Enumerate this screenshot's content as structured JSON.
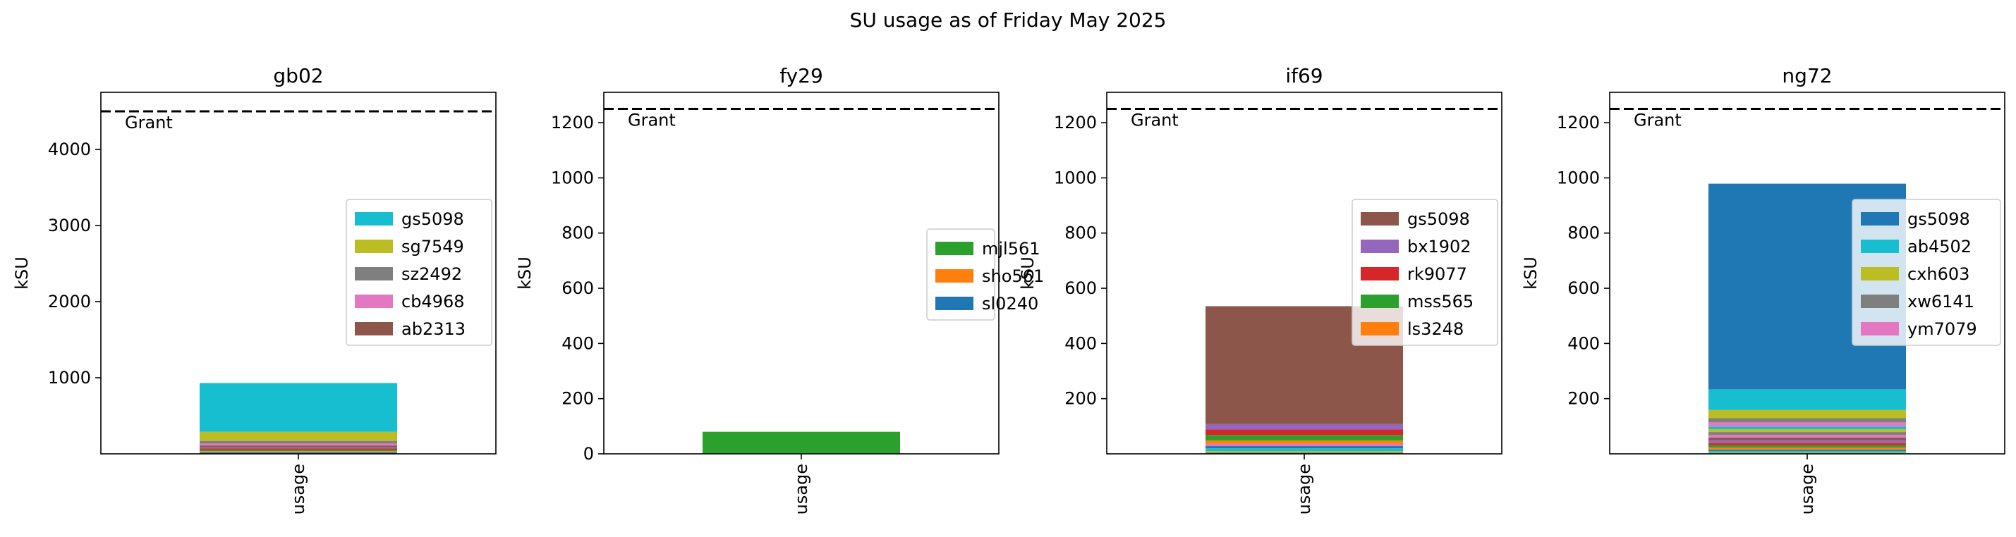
{
  "suptitle": "SU usage as of Friday May 2025",
  "colors": {
    "tab_blue": "#1f77b4",
    "tab_orange": "#ff7f0e",
    "tab_green": "#2ca02c",
    "tab_red": "#d62728",
    "tab_purple": "#9467bd",
    "tab_brown": "#8c564b",
    "tab_pink": "#e377c2",
    "tab_gray": "#7f7f7f",
    "tab_olive": "#bcbd22",
    "tab_cyan": "#17becf",
    "grant_line": "#000000"
  },
  "chart_data": [
    {
      "type": "bar",
      "stacked": true,
      "title": "gb02",
      "xlabel": "",
      "ylabel": "kSU",
      "categories": [
        "usage"
      ],
      "ylim": [
        0,
        4750
      ],
      "yticks": [
        1000,
        2000,
        3000,
        4000
      ],
      "grant": 4500,
      "grant_label": "Grant",
      "legend": [
        "gs5098",
        "sg7549",
        "sz2492",
        "cb4968",
        "ab2313"
      ],
      "legend_position": "center-right",
      "series": [
        {
          "values": [
            20
          ],
          "color": "#1f77b4"
        },
        {
          "values": [
            15
          ],
          "color": "#ff7f0e"
        },
        {
          "values": [
            20
          ],
          "color": "#2ca02c"
        },
        {
          "values": [
            15
          ],
          "color": "#d62728"
        },
        {
          "values": [
            15
          ],
          "color": "#9467bd"
        },
        {
          "name": "ab2313",
          "values": [
            25
          ],
          "color": "#8c564b"
        },
        {
          "name": "cb4968",
          "values": [
            25
          ],
          "color": "#e377c2"
        },
        {
          "name": "sz2492",
          "values": [
            35
          ],
          "color": "#7f7f7f"
        },
        {
          "name": "sg7549",
          "values": [
            120
          ],
          "color": "#bcbd22"
        },
        {
          "name": "gs5098",
          "values": [
            640
          ],
          "color": "#17becf"
        }
      ]
    },
    {
      "type": "bar",
      "stacked": true,
      "title": "fy29",
      "xlabel": "",
      "ylabel": "kSU",
      "categories": [
        "usage"
      ],
      "ylim": [
        0,
        1310
      ],
      "yticks": [
        0,
        200,
        400,
        600,
        800,
        1000,
        1200
      ],
      "grant": 1250,
      "grant_label": "Grant",
      "legend": [
        "mjl561",
        "sho561",
        "sl0240"
      ],
      "legend_position": "center-right",
      "series": [
        {
          "name": "sl0240",
          "values": [
            0
          ],
          "color": "#1f77b4"
        },
        {
          "name": "sho561",
          "values": [
            0
          ],
          "color": "#ff7f0e"
        },
        {
          "name": "mjl561",
          "values": [
            80
          ],
          "color": "#2ca02c"
        }
      ]
    },
    {
      "type": "bar",
      "stacked": true,
      "title": "if69",
      "xlabel": "",
      "ylabel": "kSU",
      "categories": [
        "usage"
      ],
      "ylim": [
        0,
        1310
      ],
      "yticks": [
        200,
        400,
        600,
        800,
        1000,
        1200
      ],
      "grant": 1250,
      "grant_label": "Grant",
      "legend": [
        "gs5098",
        "bx1902",
        "rk9077",
        "mss565",
        "ls3248"
      ],
      "legend_position": "upper-right",
      "series": [
        {
          "values": [
            5
          ],
          "color": "#7f7f7f"
        },
        {
          "values": [
            5
          ],
          "color": "#bcbd22"
        },
        {
          "values": [
            10
          ],
          "color": "#17becf"
        },
        {
          "values": [
            8
          ],
          "color": "#1f77b4"
        },
        {
          "values": [
            8
          ],
          "color": "#e377c2"
        },
        {
          "name": "ls3248",
          "values": [
            12
          ],
          "color": "#ff7f0e"
        },
        {
          "name": "mss565",
          "values": [
            20
          ],
          "color": "#2ca02c"
        },
        {
          "name": "rk9077",
          "values": [
            20
          ],
          "color": "#d62728"
        },
        {
          "name": "bx1902",
          "values": [
            20
          ],
          "color": "#9467bd"
        },
        {
          "name": "gs5098",
          "values": [
            427
          ],
          "color": "#8c564b"
        }
      ]
    },
    {
      "type": "bar",
      "stacked": true,
      "title": "ng72",
      "xlabel": "",
      "ylabel": "kSU",
      "categories": [
        "usage"
      ],
      "ylim": [
        0,
        1310
      ],
      "yticks": [
        200,
        400,
        600,
        800,
        1000,
        1200
      ],
      "grant": 1250,
      "grant_label": "Grant",
      "legend": [
        "gs5098",
        "ab4502",
        "cxh603",
        "xw6141",
        "ym7079"
      ],
      "legend_position": "upper-right",
      "series": [
        {
          "values": [
            5
          ],
          "color": "#bcbd22"
        },
        {
          "values": [
            5
          ],
          "color": "#17becf"
        },
        {
          "values": [
            5
          ],
          "color": "#1f77b4"
        },
        {
          "values": [
            8
          ],
          "color": "#ff7f0e"
        },
        {
          "values": [
            8
          ],
          "color": "#2ca02c"
        },
        {
          "values": [
            8
          ],
          "color": "#d62728"
        },
        {
          "values": [
            10
          ],
          "color": "#9467bd"
        },
        {
          "values": [
            10
          ],
          "color": "#8c564b"
        },
        {
          "values": [
            10
          ],
          "color": "#e377c2"
        },
        {
          "values": [
            10
          ],
          "color": "#7f7f7f"
        },
        {
          "values": [
            10
          ],
          "color": "#bcbd22"
        },
        {
          "values": [
            10
          ],
          "color": "#17becf"
        },
        {
          "name": "ym7079",
          "values": [
            15
          ],
          "color": "#e377c2"
        },
        {
          "name": "xw6141",
          "values": [
            15
          ],
          "color": "#7f7f7f"
        },
        {
          "name": "cxh603",
          "values": [
            30
          ],
          "color": "#bcbd22"
        },
        {
          "name": "ab4502",
          "values": [
            75
          ],
          "color": "#17becf"
        },
        {
          "name": "gs5098",
          "values": [
            745
          ],
          "color": "#1f77b4"
        }
      ]
    }
  ]
}
